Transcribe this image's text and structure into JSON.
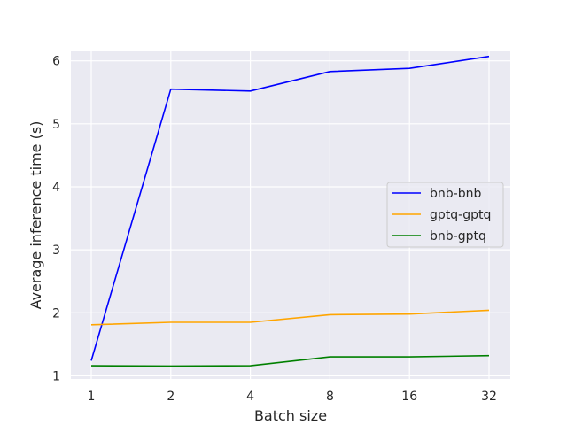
{
  "chart_data": {
    "type": "line",
    "title": "",
    "xlabel": "Batch size",
    "ylabel": "Average inference time (s)",
    "categories": [
      "1",
      "2",
      "4",
      "8",
      "16",
      "32"
    ],
    "ylim": [
      0.95,
      6.15
    ],
    "yticks": [
      1,
      2,
      3,
      4,
      5,
      6
    ],
    "grid": true,
    "legend_position": "center-right",
    "background": "#EAEAF2",
    "series": [
      {
        "name": "bnb-bnb",
        "color": "#0000FF",
        "values": [
          1.24,
          5.55,
          5.52,
          5.83,
          5.88,
          6.07
        ]
      },
      {
        "name": "gptq-gptq",
        "color": "#FFA500",
        "values": [
          1.81,
          1.85,
          1.85,
          1.97,
          1.98,
          2.04
        ]
      },
      {
        "name": "bnb-gptq",
        "color": "#008000",
        "values": [
          1.16,
          1.155,
          1.16,
          1.3,
          1.3,
          1.32
        ]
      }
    ]
  }
}
